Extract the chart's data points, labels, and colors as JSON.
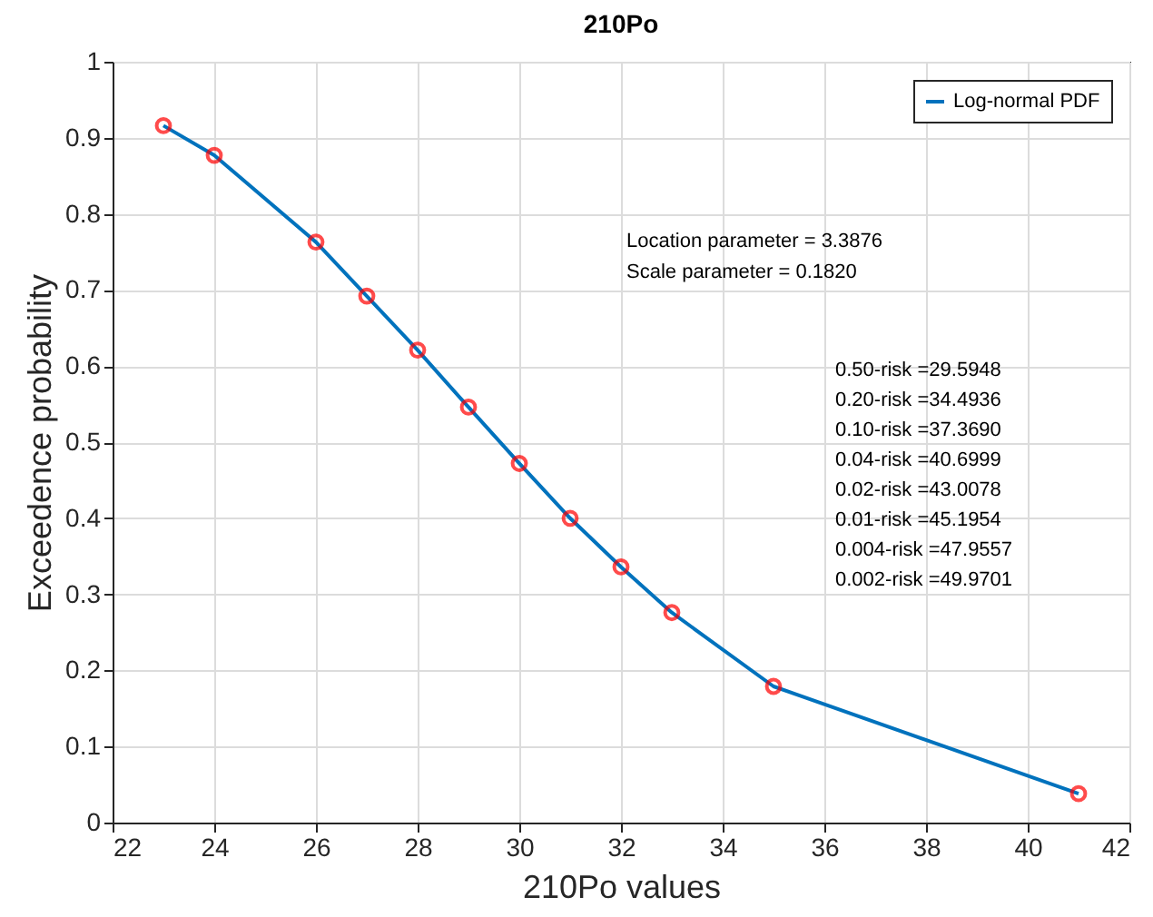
{
  "chart_data": {
    "type": "line",
    "title": "210Po",
    "xlabel": "210Po values",
    "ylabel": "Exceedence probability",
    "x": [
      23,
      24,
      26,
      27,
      28,
      29,
      30,
      31,
      32,
      33,
      35,
      41
    ],
    "series": [
      {
        "name": "Log-normal PDF",
        "color": "#0072bd",
        "values": [
          0.916,
          0.877,
          0.763,
          0.692,
          0.621,
          0.546,
          0.472,
          0.4,
          0.336,
          0.276,
          0.179,
          0.038
        ]
      }
    ],
    "xlim": [
      22,
      42
    ],
    "xticks": [
      22,
      24,
      26,
      28,
      30,
      32,
      34,
      36,
      38,
      40,
      42
    ],
    "ylim": [
      0,
      1
    ],
    "yticks": [
      0,
      0.1,
      0.2,
      0.3,
      0.4,
      0.5,
      0.6,
      0.7,
      0.8,
      0.9,
      1
    ],
    "grid": true,
    "legend": "top right",
    "marker": "circle",
    "line_style": "solid",
    "annotations": [
      "Location parameter = 3.3876",
      "Scale parameter = 0.1820",
      "0.50-risk   =29.5948",
      "0.20-risk   =34.4936",
      "0.10-risk   =37.3690",
      "0.04-risk   =40.6999",
      "0.02-risk   =43.0078",
      "0.01-risk   =45.1954",
      "0.004-risk =47.9557",
      "0.002-risk =49.9701"
    ]
  }
}
